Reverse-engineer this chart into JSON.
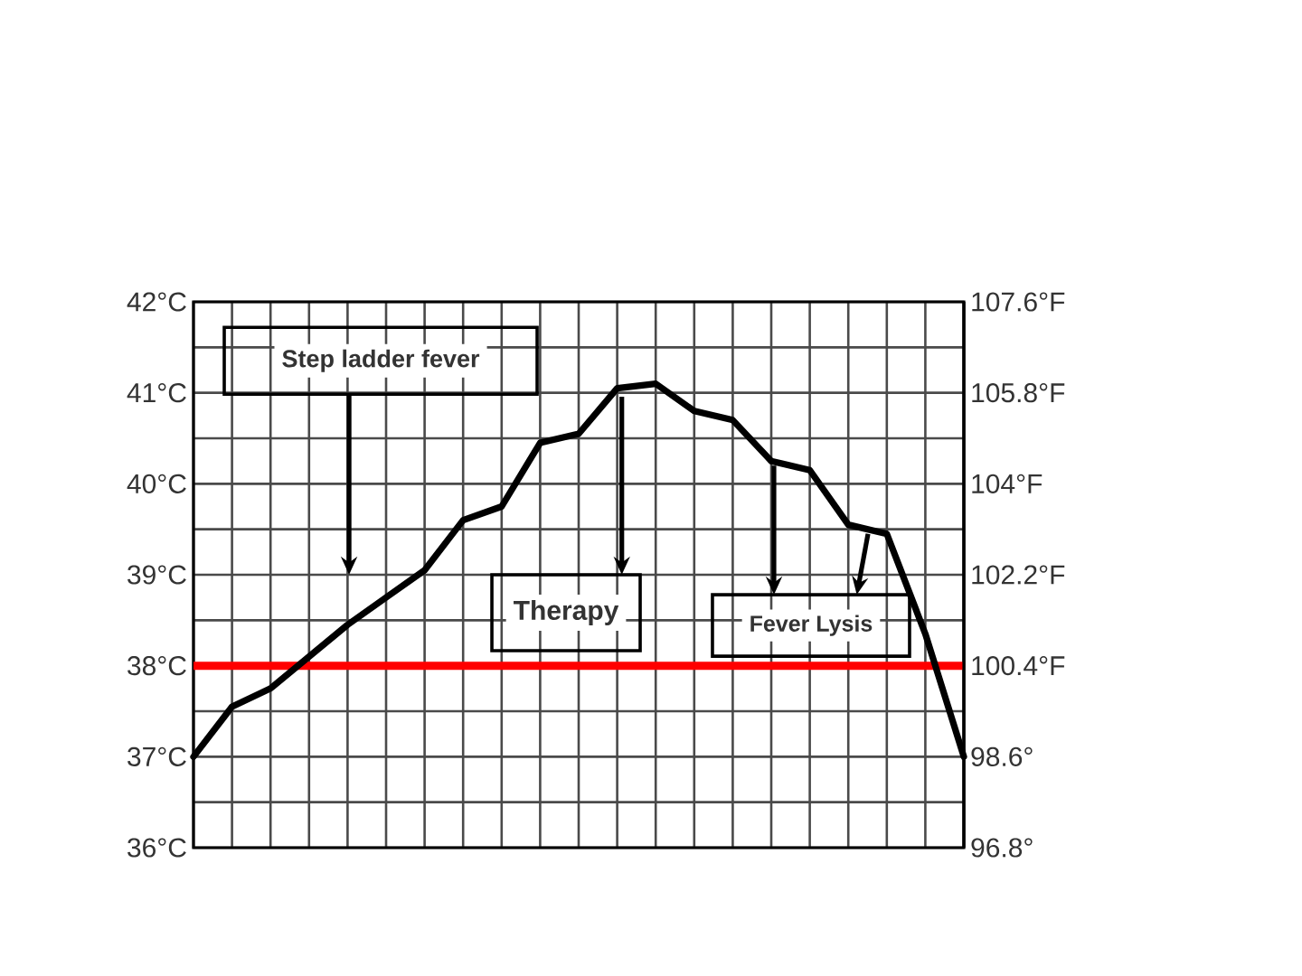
{
  "chart_data": {
    "type": "line",
    "categories": [
      null,
      null,
      null,
      null,
      null,
      null,
      null,
      null,
      null,
      null,
      null,
      null,
      null,
      null,
      null,
      null,
      null,
      null,
      null,
      null,
      null
    ],
    "series": [
      {
        "color": "#000000",
        "values": [
          37.0,
          37.55,
          37.75,
          38.1,
          38.45,
          38.75,
          39.05,
          39.6,
          39.75,
          40.45,
          40.55,
          41.05,
          41.1,
          40.8,
          40.7,
          40.25,
          40.15,
          39.55,
          39.45,
          38.35,
          37.0
        ]
      }
    ],
    "ylim": [
      36,
      42
    ],
    "yticks": [
      {
        "value": 36,
        "label": "36°C"
      },
      {
        "value": 36.5,
        "label": null
      },
      {
        "value": 37,
        "label": "37°C"
      },
      {
        "value": 37.5,
        "label": null
      },
      {
        "value": 38,
        "label": "38°C"
      },
      {
        "value": 38.5,
        "label": null
      },
      {
        "value": 39,
        "label": "39°C"
      },
      {
        "value": 39.5,
        "label": null
      },
      {
        "value": 40,
        "label": "40°C"
      },
      {
        "value": 40.5,
        "label": null
      },
      {
        "value": 41,
        "label": "41°C"
      },
      {
        "value": 41.5,
        "label": null
      },
      {
        "value": 42,
        "label": "42°C"
      }
    ],
    "y2lim": [
      96.8,
      107.6
    ],
    "y2ticks": [
      {
        "value": 96.8,
        "label": "96.8°"
      },
      {
        "value": 98.6,
        "label": "98.6°"
      },
      {
        "value": 100.4,
        "label": "100.4°F"
      },
      {
        "value": 102.2,
        "label": "102.2°F"
      },
      {
        "value": 104,
        "label": "104°F"
      },
      {
        "value": 105.8,
        "label": "105.8°F"
      },
      {
        "value": 107.6,
        "label": "107.6°F"
      }
    ],
    "ref_lines": [
      {
        "axis": "y",
        "value": 38,
        "color": "#ff0000"
      }
    ],
    "annotations": [
      "Step ladder fever",
      "Therapy",
      "Fever Lysis"
    ],
    "grid": true,
    "tick_labels": "y",
    "line_style": "solid"
  }
}
